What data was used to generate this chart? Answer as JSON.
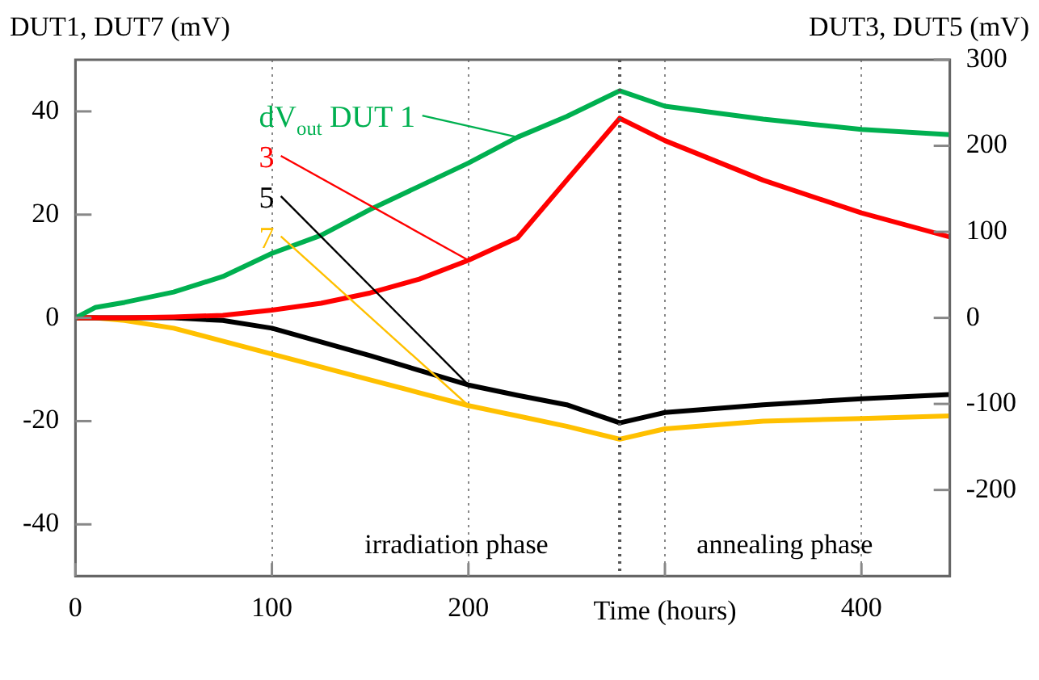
{
  "chart_data": {
    "type": "line",
    "xlabel": "Time (hours)",
    "ylabel": "DUT1, DUT7 (mV)",
    "y2label": "DUT3, DUT5 (mV)",
    "x": [
      0,
      10,
      25,
      50,
      75,
      100,
      125,
      150,
      175,
      200,
      225,
      250,
      277,
      300,
      350,
      400,
      445
    ],
    "series": [
      {
        "name": "dV$_{out}$ DUT 1",
        "color": "#00b050",
        "values": [
          0,
          2,
          3,
          5,
          8,
          12.5,
          16,
          21,
          25.5,
          30,
          35,
          39,
          44,
          41,
          38.5,
          36.5,
          35.5
        ]
      },
      {
        "name": "3",
        "color": "#ff0000",
        "axis": "y2",
        "values": [
          0,
          0,
          0,
          1,
          3,
          9,
          17,
          29,
          45,
          67,
          93,
          160,
          232,
          206,
          160,
          122,
          94
        ]
      },
      {
        "name": "5",
        "color": "#000000",
        "axis": "y2",
        "values": [
          0,
          0,
          0,
          0,
          -3,
          -12,
          -28,
          -44,
          -61,
          -78,
          -90,
          -101,
          -122,
          -110,
          -101,
          -94,
          -89
        ]
      },
      {
        "name": "7",
        "color": "#ffc000",
        "values": [
          0,
          0,
          -0.5,
          -2,
          -4.5,
          -7,
          -9.5,
          -12,
          -14.5,
          -17,
          -19,
          -21,
          -23.5,
          -21.5,
          -20,
          -19.5,
          -19
        ]
      }
    ],
    "xlim": [
      0,
      445
    ],
    "xticks": [
      0,
      100,
      200,
      {
        "value": 300,
        "label": null
      },
      400
    ],
    "ylim": [
      -50,
      50
    ],
    "yticks": [
      -40,
      -20,
      0,
      20,
      40
    ],
    "y2lim": [
      -300,
      300
    ],
    "y2ticks": [
      -200,
      -100,
      0,
      100,
      200,
      300
    ],
    "ref_lines": [
      {
        "axis": "x",
        "value": 277,
        "color": "#555555",
        "line_style": "dotted"
      }
    ],
    "annotations": [
      "irradiation phase",
      "annealing phase"
    ],
    "grid": "x",
    "legend": "top left",
    "marker": "none",
    "line_style": "solid"
  }
}
